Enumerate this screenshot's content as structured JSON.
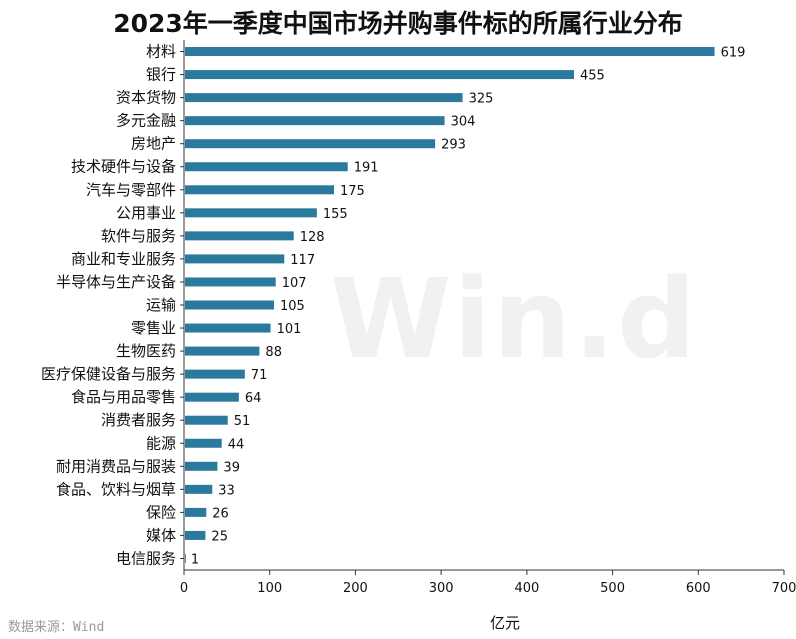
{
  "chart_data": {
    "type": "bar",
    "orientation": "horizontal",
    "title": "2023年一季度中国市场并购事件标的所属行业分布",
    "xlabel": "亿元",
    "ylabel": "",
    "xlim": [
      0,
      700
    ],
    "xticks": [
      0,
      100,
      200,
      300,
      400,
      500,
      600,
      700
    ],
    "grid": false,
    "bar_color": "#2b7a9e",
    "categories": [
      "材料",
      "银行",
      "资本货物",
      "多元金融",
      "房地产",
      "技术硬件与设备",
      "汽车与零部件",
      "公用事业",
      "软件与服务",
      "商业和专业服务",
      "半导体与生产设备",
      "运输",
      "零售业",
      "生物医药",
      "医疗保健设备与服务",
      "食品与用品零售",
      "消费者服务",
      "能源",
      "耐用消费品与服装",
      "食品、饮料与烟草",
      "保险",
      "媒体",
      "电信服务"
    ],
    "values": [
      619,
      455,
      325,
      304,
      293,
      191,
      175,
      155,
      128,
      117,
      107,
      105,
      101,
      88,
      71,
      64,
      51,
      44,
      39,
      33,
      26,
      25,
      1
    ]
  },
  "watermark": "Win.d",
  "source_note": "数据来源：Wind"
}
